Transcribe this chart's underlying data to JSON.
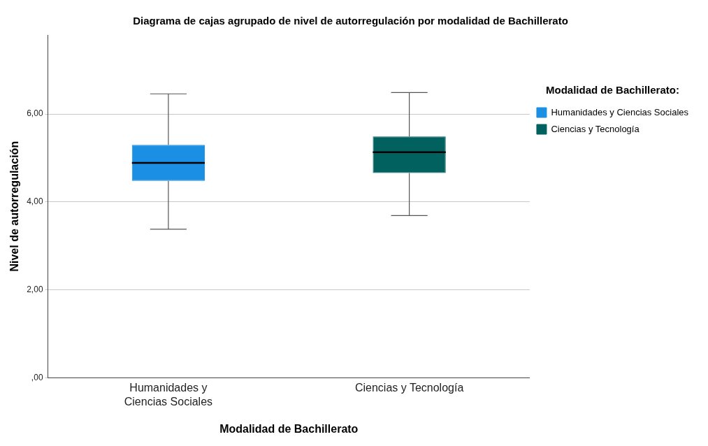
{
  "chart_data": {
    "type": "box",
    "title": "Diagrama de cajas agrupado de nivel de autorregulación por modalidad de Bachillerato",
    "xlabel": "Modalidad de Bachillerato",
    "ylabel": "Nivel de autorregulación",
    "legend_title": "Modalidad de Bachillerato:",
    "legend": "top right",
    "grid": "y",
    "categories": [
      "Humanidades y Ciencias Sociales",
      "Ciencias y Tecnología"
    ],
    "ylim": [
      0,
      7.8
    ],
    "yticks": [
      {
        "value": 0,
        "label": ",00"
      },
      {
        "value": 2,
        "label": "2,00"
      },
      {
        "value": 4,
        "label": "4,00"
      },
      {
        "value": 6,
        "label": "6,00"
      }
    ],
    "series": [
      {
        "name": "Humanidades y Ciencias Sociales",
        "color": "#1a8fe3",
        "boxes": [
          {
            "low": 3.38,
            "q1": 4.48,
            "median": 4.89,
            "q3": 5.3,
            "high": 6.46
          },
          null
        ]
      },
      {
        "name": "Ciencias y Tecnología",
        "color": "#00615f",
        "boxes": [
          null,
          {
            "low": 3.69,
            "q1": 4.66,
            "median": 5.13,
            "q3": 5.49,
            "high": 6.49
          }
        ]
      }
    ]
  }
}
